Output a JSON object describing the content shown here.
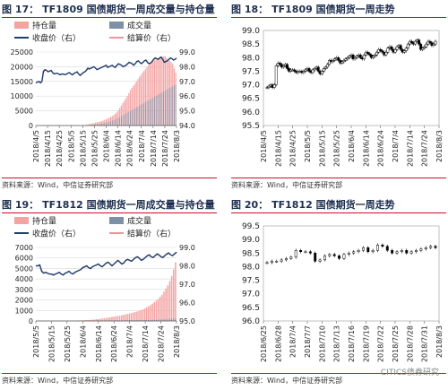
{
  "panels": [
    {
      "title_num": "图 17：",
      "title_text": "TF1809 国债期货一周成交量与持仓量",
      "source": "资料来源：Wind，中信证券研究部"
    },
    {
      "title_num": "图 18：",
      "title_text": "TF1809 国债期货一周走势",
      "source": "资料来源：Wind，中信证券研究部"
    },
    {
      "title_num": "图 19：",
      "title_text": "TF1812 国债期货一周成交量与持仓量",
      "source": "资料来源：Wind，中信证券研究部"
    },
    {
      "title_num": "图 20：",
      "title_text": "TF1812 国债期货一周走势",
      "source": "资料来源：Wind，中信证券研究部"
    }
  ],
  "watermark": "CITICS债券研究",
  "colors": {
    "oi": "#f4a3a3",
    "vol": "#7f8fa6",
    "close": "#1f3f6e",
    "settle": "#e8707a",
    "candle": "#000000",
    "grid": "#d9d9d9",
    "title": "#1e2f50",
    "rule": "#c8102e"
  },
  "chart_data": [
    {
      "type": "bar",
      "id": "c17",
      "legend": [
        "持仓量",
        "成交量",
        "收盘价（右）",
        "结算价（右）"
      ],
      "x_ticks": [
        "2018/4/5",
        "2018/4/15",
        "2018/4/25",
        "2018/5/5",
        "2018/5/15",
        "2018/5/25",
        "2018/6/4",
        "2018/6/14",
        "2018/6/24",
        "2018/7/4",
        "2018/7/14",
        "2018/7/24",
        "2018/8/3"
      ],
      "y_left_ticks": [
        "0",
        "5000",
        "10000",
        "15000",
        "20000",
        "25000"
      ],
      "y_right_ticks": [
        "94.0",
        "95.0",
        "96.0",
        "97.0",
        "98.0",
        "99.0"
      ],
      "ylim_left": [
        0,
        25000
      ],
      "ylim_right": [
        94,
        99
      ],
      "series": [
        {
          "name": "持仓量",
          "kind": "bar",
          "axis": "left",
          "values": [
            0,
            0,
            0,
            0,
            0,
            0,
            0,
            0,
            0,
            0,
            0,
            0,
            0,
            0,
            0,
            0,
            0,
            0,
            0,
            0,
            0,
            0,
            0,
            0,
            0,
            0,
            0,
            0,
            0,
            0,
            0,
            0,
            0,
            300,
            400,
            500,
            600,
            700,
            900,
            1000,
            1100,
            1200,
            1400,
            1500,
            1700,
            1900,
            2100,
            2400,
            2600,
            2900,
            3200,
            3600,
            4000,
            4500,
            5200,
            6000,
            6800,
            7600,
            8400,
            9200,
            10000,
            11000,
            12000,
            12800,
            13500,
            14200,
            15000,
            15800,
            16500,
            17200,
            18000,
            18600,
            19200,
            19800,
            20400,
            21000,
            21500,
            22000,
            22200,
            22500,
            22800,
            23000,
            23200,
            23400,
            23500,
            23600,
            23000,
            22500,
            22000,
            21500,
            21000,
            19500,
            18000
          ]
        },
        {
          "name": "成交量",
          "kind": "bar",
          "axis": "left",
          "values": [
            0,
            0,
            0,
            0,
            0,
            0,
            0,
            0,
            0,
            0,
            0,
            0,
            0,
            0,
            0,
            0,
            0,
            0,
            0,
            0,
            0,
            0,
            0,
            0,
            0,
            0,
            0,
            0,
            0,
            0,
            0,
            0,
            0,
            100,
            150,
            200,
            250,
            300,
            350,
            400,
            450,
            500,
            600,
            700,
            800,
            900,
            1000,
            1100,
            1300,
            1500,
            1700,
            1900,
            2100,
            2300,
            2600,
            2900,
            3200,
            3500,
            3800,
            4100,
            4400,
            4700,
            5000,
            5300,
            5600,
            5900,
            6200,
            6500,
            6800,
            7100,
            7400,
            7700,
            8000,
            8300,
            8600,
            8900,
            9200,
            9500,
            9800,
            10100,
            10400,
            10700,
            11000,
            11300,
            11600,
            11900,
            12200,
            12500,
            12800,
            13100,
            13400,
            13700,
            14000
          ]
        },
        {
          "name": "收盘价（右）",
          "kind": "line",
          "axis": "right",
          "values": [
            96.9,
            96.95,
            97.0,
            96.9,
            97.0,
            97.7,
            97.8,
            97.75,
            97.65,
            97.7,
            97.75,
            97.6,
            97.5,
            97.55,
            97.55,
            97.5,
            97.45,
            97.5,
            97.5,
            97.45,
            97.5,
            97.55,
            97.6,
            97.5,
            97.45,
            97.55,
            97.6,
            97.65,
            97.5,
            97.4,
            97.5,
            97.6,
            97.65,
            97.75,
            97.9,
            97.85,
            97.9,
            97.95,
            98.0,
            97.9,
            97.8,
            97.85,
            97.9,
            97.95,
            98.0,
            98.05,
            98.1,
            97.95,
            98.0,
            98.05,
            98.1,
            98.0,
            97.95,
            98.1,
            98.2,
            98.15,
            98.1,
            98.0,
            98.05,
            98.1,
            98.2,
            98.3,
            98.25,
            98.2,
            98.1,
            98.2,
            98.35,
            98.4,
            98.3,
            98.2,
            98.3,
            98.4,
            98.45,
            98.3,
            98.2,
            98.25,
            98.35,
            98.5,
            98.6,
            98.55,
            98.5,
            98.6,
            98.65,
            98.5,
            98.3,
            98.35,
            98.4,
            98.5,
            98.6,
            98.55,
            98.45,
            98.5,
            98.6
          ]
        },
        {
          "name": "结算价（右）",
          "kind": "line",
          "axis": "right",
          "values": [
            96.95,
            96.95,
            96.98,
            96.95,
            97.0,
            97.6,
            97.75,
            97.75,
            97.68,
            97.7,
            97.72,
            97.62,
            97.52,
            97.55,
            97.55,
            97.5,
            97.48,
            97.5,
            97.5,
            97.47,
            97.5,
            97.55,
            97.58,
            97.52,
            97.48,
            97.55,
            97.6,
            97.62,
            97.52,
            97.45,
            97.5,
            97.58,
            97.65,
            97.72,
            97.85,
            97.85,
            97.88,
            97.93,
            97.98,
            97.9,
            97.82,
            97.85,
            97.9,
            97.94,
            97.98,
            98.03,
            98.08,
            97.98,
            98.0,
            98.04,
            98.08,
            98.02,
            97.98,
            98.08,
            98.17,
            98.15,
            98.1,
            98.02,
            98.05,
            98.1,
            98.18,
            98.27,
            98.25,
            98.2,
            98.12,
            98.2,
            98.32,
            98.38,
            98.3,
            98.22,
            98.3,
            98.38,
            98.43,
            98.32,
            98.23,
            98.26,
            98.35,
            98.47,
            98.57,
            98.55,
            98.5,
            98.58,
            98.62,
            98.5,
            98.35,
            98.37,
            98.42,
            98.5,
            98.57,
            98.55,
            98.47,
            98.5,
            98.58
          ]
        }
      ]
    },
    {
      "type": "candlestick",
      "id": "c18",
      "x_ticks": [
        "2018/4/5",
        "2018/4/15",
        "2018/4/25",
        "2018/5/5",
        "2018/5/15",
        "2018/5/25",
        "2018/6/4",
        "2018/6/14",
        "2018/6/24",
        "2018/7/4",
        "2018/7/14",
        "2018/7/24",
        "2018/8/3"
      ],
      "y_ticks": [
        "95.5",
        "96.0",
        "96.5",
        "97.0",
        "97.5",
        "98.0",
        "98.5",
        "99.0"
      ],
      "ylim": [
        95.5,
        99.0
      ],
      "closes": [
        96.9,
        96.95,
        97.0,
        96.9,
        97.0,
        97.7,
        97.8,
        97.75,
        97.65,
        97.7,
        97.75,
        97.6,
        97.5,
        97.55,
        97.55,
        97.5,
        97.45,
        97.5,
        97.5,
        97.45,
        97.5,
        97.55,
        97.6,
        97.5,
        97.45,
        97.55,
        97.6,
        97.65,
        97.5,
        97.4,
        97.5,
        97.6,
        97.65,
        97.75,
        97.9,
        97.85,
        97.9,
        97.95,
        98.0,
        97.9,
        97.8,
        97.85,
        97.9,
        97.95,
        98.0,
        98.05,
        98.1,
        97.95,
        98.0,
        98.05,
        98.1,
        98.0,
        97.95,
        98.1,
        98.2,
        98.15,
        98.1,
        98.0,
        98.05,
        98.1,
        98.2,
        98.3,
        98.25,
        98.2,
        98.1,
        98.2,
        98.35,
        98.4,
        98.3,
        98.2,
        98.3,
        98.4,
        98.45,
        98.3,
        98.2,
        98.25,
        98.35,
        98.5,
        98.6,
        98.55,
        98.5,
        98.6,
        98.65,
        98.5,
        98.3,
        98.35,
        98.4,
        98.5,
        98.6,
        98.55,
        98.45,
        98.5,
        98.6
      ]
    },
    {
      "type": "bar",
      "id": "c19",
      "legend": [
        "持仓量",
        "成交量",
        "收盘价（右）",
        "结算价（右）"
      ],
      "x_ticks": [
        "2018/5/5",
        "2018/5/15",
        "2018/5/25",
        "2018/6/4",
        "2018/6/14",
        "2018/6/24",
        "2018/7/4",
        "2018/7/14",
        "2018/7/24",
        "2018/8/3"
      ],
      "y_left_ticks": [
        "0",
        "1000",
        "2000",
        "3000",
        "4000",
        "5000",
        "6000",
        "7000"
      ],
      "y_right_ticks": [
        "95.0",
        "96.0",
        "97.0",
        "98.0",
        "99.0"
      ],
      "ylim_left": [
        0,
        7000
      ],
      "ylim_right": [
        95,
        99
      ],
      "series": [
        {
          "name": "持仓量",
          "kind": "bar",
          "axis": "left",
          "values": [
            0,
            0,
            0,
            0,
            0,
            0,
            0,
            0,
            0,
            0,
            0,
            0,
            0,
            0,
            0,
            0,
            0,
            0,
            0,
            0,
            20,
            30,
            40,
            50,
            60,
            70,
            80,
            90,
            100,
            120,
            140,
            160,
            180,
            200,
            230,
            260,
            290,
            320,
            350,
            380,
            410,
            440,
            470,
            500,
            540,
            580,
            620,
            660,
            700,
            750,
            800,
            850,
            900,
            950,
            1000,
            1100,
            1200,
            1300,
            1400,
            1500,
            1650,
            1800,
            1950,
            2100,
            2300,
            2500,
            2800,
            3100,
            3400,
            3800,
            4300,
            4900,
            5600
          ]
        },
        {
          "name": "成交量",
          "kind": "bar",
          "axis": "left",
          "values": [
            0,
            0,
            0,
            0,
            0,
            0,
            0,
            0,
            0,
            0,
            0,
            0,
            0,
            0,
            0,
            0,
            0,
            0,
            0,
            0,
            5,
            5,
            10,
            10,
            10,
            15,
            15,
            20,
            20,
            25,
            25,
            30,
            30,
            35,
            35,
            40,
            40,
            45,
            45,
            50,
            50,
            55,
            55,
            60,
            60,
            65,
            65,
            70,
            70,
            75,
            75,
            80,
            80,
            85,
            85,
            90,
            90,
            95,
            95,
            100,
            110,
            120,
            130,
            140,
            150,
            160,
            170,
            180,
            190,
            200,
            220,
            240,
            260
          ]
        },
        {
          "name": "收盘价（右）",
          "kind": "line",
          "axis": "right",
          "values": [
            98.0,
            98.0,
            98.05,
            97.7,
            97.6,
            97.65,
            97.6,
            97.55,
            97.55,
            97.5,
            97.55,
            97.6,
            97.65,
            97.55,
            97.5,
            97.6,
            97.65,
            97.7,
            97.6,
            97.55,
            97.65,
            97.7,
            97.75,
            97.8,
            97.9,
            97.95,
            98.0,
            97.9,
            97.85,
            97.95,
            98.0,
            98.05,
            98.1,
            98.0,
            97.95,
            98.05,
            98.15,
            98.2,
            98.1,
            98.0,
            98.1,
            98.2,
            98.3,
            98.2,
            98.1,
            98.15,
            98.3,
            98.35,
            98.3,
            98.25,
            98.35,
            98.45,
            98.5,
            98.4,
            98.3,
            98.35,
            98.45,
            98.55,
            98.6,
            98.5,
            98.45,
            98.55,
            98.65,
            98.6,
            98.5,
            98.45,
            98.55,
            98.65,
            98.7,
            98.6,
            98.55,
            98.65,
            98.75
          ]
        },
        {
          "name": "结算价（右）",
          "kind": "line",
          "axis": "right",
          "values": [
            98.0,
            98.0,
            98.02,
            97.75,
            97.62,
            97.64,
            97.6,
            97.56,
            97.55,
            97.52,
            97.55,
            97.6,
            97.63,
            97.56,
            97.52,
            97.58,
            97.64,
            97.68,
            97.6,
            97.57,
            97.64,
            97.69,
            97.74,
            97.79,
            97.87,
            97.93,
            97.97,
            97.9,
            97.87,
            97.94,
            97.99,
            98.04,
            98.08,
            98.01,
            97.97,
            98.04,
            98.13,
            98.18,
            98.1,
            98.03,
            98.1,
            98.19,
            98.27,
            98.2,
            98.12,
            98.16,
            98.28,
            98.33,
            98.29,
            98.26,
            98.34,
            98.43,
            98.48,
            98.4,
            98.32,
            98.36,
            98.44,
            98.53,
            98.57,
            98.5,
            98.46,
            98.54,
            98.62,
            98.58,
            98.5,
            98.47,
            98.55,
            98.63,
            98.67,
            98.6,
            98.56,
            98.64,
            98.72
          ]
        }
      ]
    },
    {
      "type": "candlestick",
      "id": "c20",
      "x_ticks": [
        "2018/6/25",
        "2018/6/28",
        "2018/7/4",
        "2018/7/7",
        "2018/7/10",
        "2018/7/13",
        "2018/7/16",
        "2018/7/19",
        "2018/7/22",
        "2018/7/25",
        "2018/7/28",
        "2018/7/31",
        "2018/8/3"
      ],
      "y_ticks": [
        "96.0",
        "96.5",
        "97.0",
        "97.5",
        "98.0",
        "98.5",
        "99.0",
        "99.5"
      ],
      "ylim": [
        96.0,
        99.5
      ],
      "closes": [
        98.15,
        98.2,
        98.2,
        98.25,
        98.3,
        98.35,
        98.6,
        98.55,
        98.55,
        98.5,
        98.2,
        98.25,
        98.4,
        98.45,
        98.4,
        98.3,
        98.45,
        98.5,
        98.55,
        98.6,
        98.7,
        98.55,
        98.6,
        98.8,
        98.75,
        98.6,
        98.5,
        98.55,
        98.6,
        98.5,
        98.55,
        98.6,
        98.65,
        98.7,
        98.75,
        98.7
      ]
    }
  ]
}
